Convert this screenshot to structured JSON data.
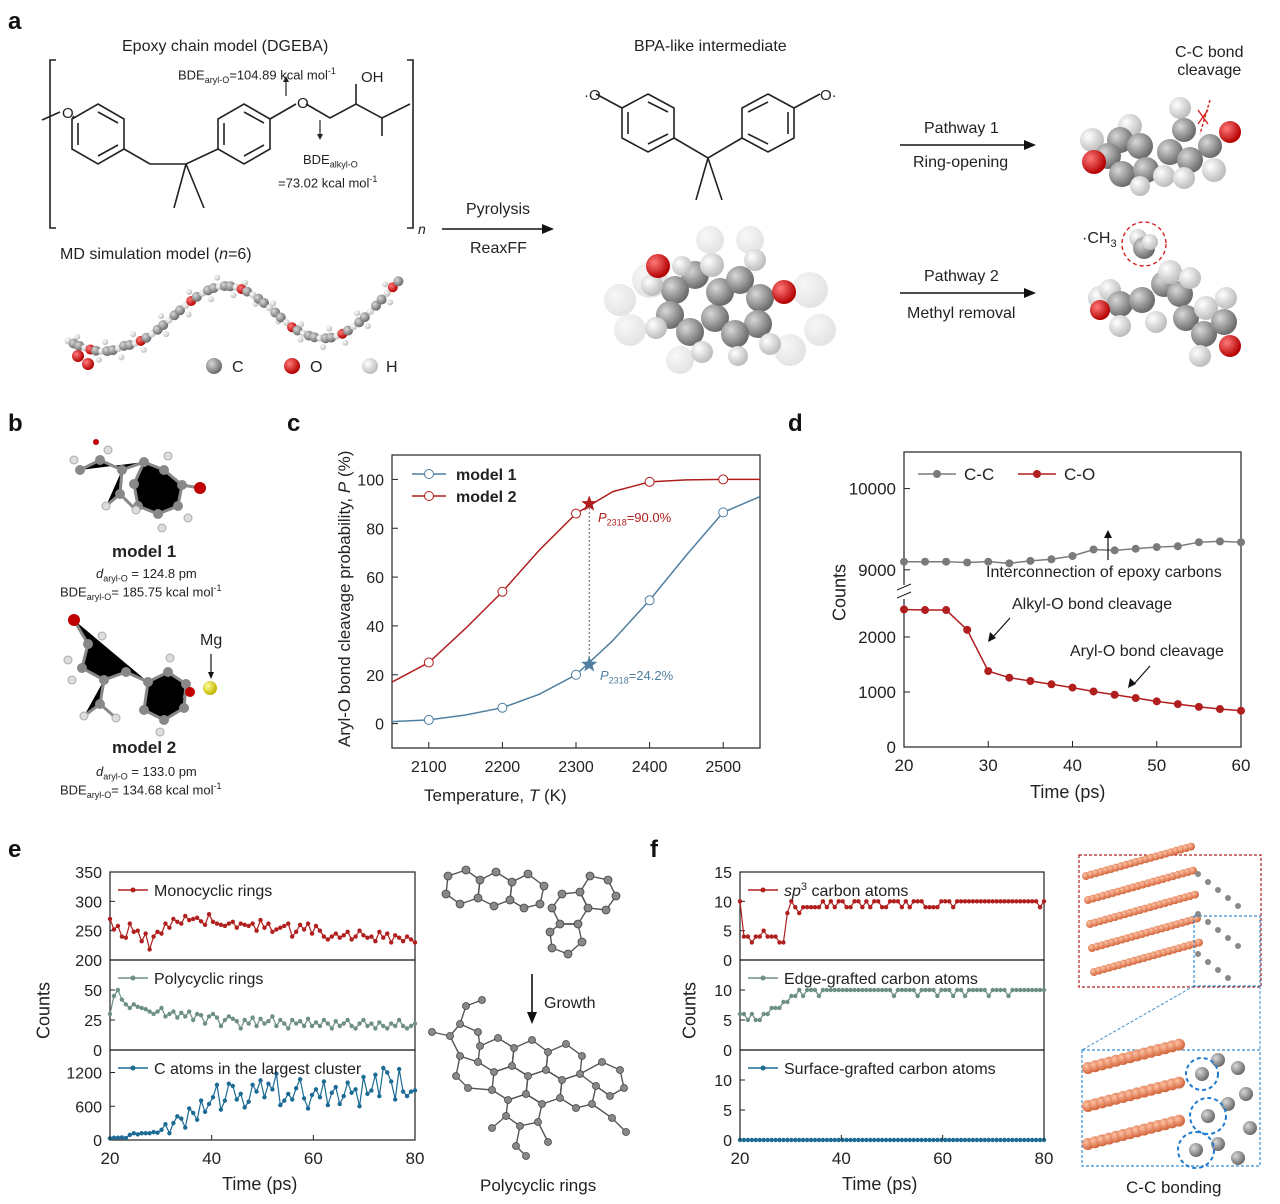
{
  "panel_a": {
    "letter": "a",
    "epoxy_title": "Epoxy chain model (DGEBA)",
    "bde_aryl": "BDE",
    "bde_aryl_sub": "aryl-O",
    "bde_aryl_val": "=104.89 kcal mol",
    "bde_alkyl": "BDE",
    "bde_alkyl_sub": "alkyl-O",
    "bde_alkyl_val": "=73.02 kcal mol",
    "oh": "OH",
    "o_label": "O",
    "n_label": "n",
    "md_title_pre": "MD simulation model (",
    "md_title_n": "n",
    "md_title_post": "=6)",
    "legend": [
      "C",
      "O",
      "H"
    ],
    "pyrolysis": "Pyrolysis",
    "reaxff": "ReaxFF",
    "bpa_title": "BPA-like intermediate",
    "pathway1": "Pathway 1",
    "ring_opening": "Ring-opening",
    "pathway2": "Pathway 2",
    "methyl_removal": "Methyl removal",
    "cc_cleavage_1": "C-C bond",
    "cc_cleavage_2": "cleavage",
    "ch3": "·CH",
    "ch3_sub": "3"
  },
  "panel_b": {
    "letter": "b",
    "model1": "model 1",
    "model1_d": "d",
    "model1_d_sub": "aryl-O",
    "model1_d_val": " = 124.8 pm",
    "model1_bde": "BDE",
    "model1_bde_sub": "aryl-O",
    "model1_bde_val": "= 185.75 kcal mol",
    "model2": "model 2",
    "model2_d": "d",
    "model2_d_sub": "aryl-O",
    "model2_d_val": " = 133.0 pm",
    "model2_bde": "BDE",
    "model2_bde_sub": "aryl-O",
    "model2_bde_val": "= 134.68 kcal mol",
    "mg": "Mg",
    "minus1": "-1"
  },
  "panel_c": {
    "letter": "c",
    "ylabel_pre": "Aryl-O bond cleavage probability, ",
    "ylabel_var": "P",
    "ylabel_post": " (%)",
    "xlabel_pre": "Temperature, ",
    "xlabel_var": "T",
    "xlabel_post": " (K)",
    "ann1": "=90.0%",
    "ann2": "=24.2%",
    "ann_var": "P",
    "ann_sub": "2318"
  },
  "panel_d": {
    "letter": "d",
    "ylabel": "Counts",
    "xlabel": "Time (ps)",
    "ann_inter": "Interconnection of epoxy carbons",
    "ann_alkyl": "Alkyl-O bond cleavage",
    "ann_aryl": "Aryl-O bond cleavage"
  },
  "panel_e": {
    "letter": "e",
    "ylabel": "Counts",
    "xlabel": "Time (ps)",
    "growth": "Growth",
    "poly_caption": "Polycyclic rings"
  },
  "panel_f": {
    "letter": "f",
    "ylabel": "Counts",
    "xlabel": "Time (ps)",
    "sp3_pre": "sp",
    "sp3_sup": "3",
    "sp3_post": " carbon atoms",
    "cc_bonding": "C-C bonding"
  },
  "colors": {
    "red": "#b01e1e",
    "blue": "#4f7fa0",
    "gray": "#7a7a7a",
    "teal": "#6e8f84",
    "dblue": "#1b6b95",
    "orange": "#e07b53"
  },
  "chart_data": [
    {
      "id": "c",
      "type": "line",
      "xlabel": "Temperature, T (K)",
      "ylabel": "Aryl-O bond cleavage probability, P (%)",
      "xlim": [
        2050,
        2550
      ],
      "ylim": [
        -10,
        110
      ],
      "xticks": [
        2100,
        2200,
        2300,
        2400,
        2500
      ],
      "yticks": [
        0,
        20,
        40,
        60,
        80,
        100
      ],
      "series": [
        {
          "name": "model 1",
          "color": "#4f7fa0",
          "x": [
            2100,
            2200,
            2300,
            2400,
            2500
          ],
          "y": [
            1.5,
            6.5,
            20,
            50.5,
            86.5
          ],
          "curve_x": [
            2050,
            2100,
            2150,
            2200,
            2250,
            2300,
            2350,
            2400,
            2450,
            2500,
            2550
          ],
          "curve_y": [
            0.8,
            1.5,
            3.5,
            6.5,
            12,
            20,
            34,
            50.5,
            69,
            86.5,
            93
          ]
        },
        {
          "name": "model 2",
          "color": "#b01e1e",
          "x": [
            2100,
            2200,
            2300,
            2400,
            2500
          ],
          "y": [
            25,
            54,
            86,
            99,
            100
          ],
          "curve_x": [
            2050,
            2100,
            2150,
            2200,
            2250,
            2300,
            2350,
            2400,
            2450,
            2500,
            2550
          ],
          "curve_y": [
            17,
            25,
            39,
            54,
            71,
            86,
            95,
            99,
            99.8,
            100,
            100
          ]
        }
      ],
      "markers": [
        {
          "x": 2318,
          "y": 90.0,
          "series": "model 2",
          "label": "P2318=90.0%"
        },
        {
          "x": 2318,
          "y": 24.2,
          "series": "model 1",
          "label": "P2318=24.2%"
        }
      ]
    },
    {
      "id": "d",
      "type": "line",
      "xlabel": "Time (ps)",
      "ylabel": "Counts",
      "xlim": [
        20,
        60
      ],
      "xticks": [
        20,
        30,
        40,
        50,
        60
      ],
      "yticks_lower": [
        0,
        1000,
        2000
      ],
      "yticks_upper": [
        9000,
        10000
      ],
      "series": [
        {
          "name": "C-C",
          "color": "#7a7a7a",
          "x": [
            20,
            22.5,
            25,
            27.5,
            30,
            32.5,
            35,
            37.5,
            40,
            42.5,
            45,
            47.5,
            50,
            52.5,
            55,
            57.5,
            60
          ],
          "y": [
            9100,
            9100,
            9100,
            9090,
            9100,
            9080,
            9110,
            9130,
            9170,
            9250,
            9240,
            9260,
            9280,
            9290,
            9340,
            9350,
            9340
          ]
        },
        {
          "name": "C-O",
          "color": "#b01e1e",
          "x": [
            20,
            22.5,
            25,
            27.5,
            30,
            32.5,
            35,
            37.5,
            40,
            42.5,
            45,
            47.5,
            50,
            52.5,
            55,
            57.5,
            60
          ],
          "y": [
            2500,
            2490,
            2490,
            2130,
            1380,
            1260,
            1200,
            1140,
            1080,
            1010,
            950,
            890,
            830,
            780,
            730,
            690,
            660
          ]
        }
      ]
    },
    {
      "id": "e",
      "type": "line",
      "xlabel": "Time (ps)",
      "ylabel": "Counts",
      "xlim": [
        20,
        80
      ],
      "xticks": [
        20,
        40,
        60,
        80
      ],
      "subplots": [
        {
          "name": "Monocyclic rings",
          "color": "#b01e1e",
          "ylim": [
            200,
            350
          ],
          "yticks": [
            200,
            250,
            300,
            350
          ],
          "y": [
            270,
            252,
            258,
            240,
            238,
            262,
            248,
            250,
            232,
            245,
            218,
            240,
            248,
            245,
            262,
            255,
            270,
            265,
            262,
            275,
            268,
            270,
            272,
            266,
            260,
            278,
            265,
            262,
            260,
            258,
            262,
            265,
            255,
            262,
            260,
            258,
            262,
            250,
            268,
            255,
            262,
            248,
            252,
            255,
            258,
            262,
            240,
            248,
            260,
            252,
            262,
            245,
            258,
            250,
            240,
            235,
            240,
            245,
            238,
            242,
            248,
            235,
            240,
            250,
            242,
            238,
            240,
            232,
            248,
            238,
            245,
            230,
            242,
            238,
            232,
            240,
            235,
            230
          ]
        },
        {
          "name": "Polycyclic rings",
          "color": "#6e8f84",
          "ylim": [
            0,
            75
          ],
          "yticks": [
            0,
            25,
            50
          ],
          "y": [
            30,
            45,
            50,
            42,
            38,
            35,
            38,
            36,
            35,
            34,
            32,
            30,
            32,
            35,
            28,
            30,
            32,
            27,
            31,
            28,
            32,
            25,
            30,
            29,
            22,
            28,
            30,
            27,
            20,
            25,
            28,
            26,
            24,
            18,
            25,
            22,
            27,
            20,
            26,
            22,
            24,
            28,
            20,
            25,
            22,
            18,
            25,
            22,
            24,
            20,
            26,
            20,
            23,
            20,
            25,
            22,
            18,
            24,
            20,
            22,
            25,
            20,
            18,
            22,
            25,
            20,
            22,
            18,
            23,
            20,
            18,
            22,
            20,
            25,
            20,
            18,
            20,
            22
          ]
        },
        {
          "name": "C atoms in the largest cluster",
          "color": "#1b6b95",
          "ylim": [
            0,
            1600
          ],
          "yticks": [
            0,
            600,
            1200
          ],
          "y": [
            30,
            40,
            40,
            45,
            35,
            90,
            120,
            100,
            120,
            120,
            120,
            140,
            130,
            180,
            280,
            120,
            300,
            420,
            380,
            220,
            560,
            480,
            360,
            700,
            500,
            640,
            760,
            980,
            540,
            700,
            1000,
            960,
            720,
            820,
            580,
            680,
            980,
            860,
            1060,
            760,
            1000,
            900,
            1180,
            620,
            700,
            820,
            720,
            920,
            1080,
            740,
            560,
            800,
            900,
            760,
            1040,
            620,
            840,
            940,
            640,
            780,
            1020,
            840,
            900,
            600,
            1120,
            820,
            880,
            1160,
            780,
            1280,
            1200,
            1040,
            720,
            1260,
            860,
            780,
            860,
            880
          ]
        }
      ]
    },
    {
      "id": "f",
      "type": "line",
      "xlabel": "Time (ps)",
      "ylabel": "Counts",
      "xlim": [
        20,
        80
      ],
      "xticks": [
        20,
        40,
        60,
        80
      ],
      "subplots": [
        {
          "name": "sp3 carbon atoms",
          "color": "#b01e1e",
          "ylim": [
            0,
            15
          ],
          "yticks": [
            0,
            5,
            10,
            15
          ],
          "y": [
            10,
            4,
            4,
            3,
            4,
            4,
            5,
            4,
            4,
            4,
            3,
            3,
            8,
            10,
            9,
            8,
            9,
            9,
            9,
            9,
            9,
            10,
            9,
            10,
            9,
            10,
            10,
            9,
            9,
            10,
            10,
            9,
            10,
            9,
            10,
            10,
            9,
            9,
            10,
            10,
            10,
            9,
            10,
            9,
            10,
            10,
            10,
            9,
            9,
            9,
            9,
            10,
            10,
            10,
            9,
            10,
            10,
            10,
            10,
            10,
            10,
            10,
            10,
            10,
            10,
            10,
            10,
            10,
            10,
            10,
            10,
            10,
            10,
            10,
            10,
            10,
            9,
            10
          ]
        },
        {
          "name": "Edge-grafted carbon atoms",
          "color": "#6e8f84",
          "ylim": [
            0,
            15
          ],
          "yticks": [
            0,
            5,
            10
          ],
          "y": [
            6,
            6,
            5,
            6,
            5,
            5,
            6,
            6,
            7,
            7,
            7,
            8,
            8,
            9,
            9,
            10,
            9,
            10,
            10,
            10,
            9,
            10,
            10,
            10,
            10,
            10,
            10,
            10,
            10,
            10,
            10,
            10,
            10,
            10,
            10,
            10,
            10,
            10,
            10,
            9,
            10,
            10,
            10,
            10,
            10,
            9,
            10,
            10,
            10,
            10,
            9,
            10,
            10,
            10,
            9,
            10,
            10,
            9,
            10,
            10,
            10,
            10,
            10,
            9,
            10,
            10,
            10,
            10,
            9,
            10,
            10,
            10,
            10,
            10,
            10,
            10,
            10,
            10
          ]
        },
        {
          "name": "Surface-grafted carbon atoms",
          "color": "#1b6b95",
          "ylim": [
            0,
            15
          ],
          "yticks": [
            0,
            5,
            10
          ],
          "y": [
            0,
            0,
            0,
            0,
            0,
            0,
            0,
            0,
            0,
            0,
            0,
            0,
            0,
            0,
            0,
            0,
            0,
            0,
            0,
            0,
            0,
            0,
            0,
            0,
            0,
            0,
            0,
            0,
            0,
            0,
            0,
            0,
            0,
            0,
            0,
            0,
            0,
            0,
            0,
            0,
            0,
            0,
            0,
            0,
            0,
            0,
            0,
            0,
            0,
            0,
            0,
            0,
            0,
            0,
            0,
            0,
            0,
            0,
            0,
            0,
            0,
            0,
            0,
            0,
            0,
            0,
            0,
            0,
            0,
            0,
            0,
            0,
            0,
            0,
            0,
            0,
            0,
            0
          ]
        }
      ]
    }
  ]
}
